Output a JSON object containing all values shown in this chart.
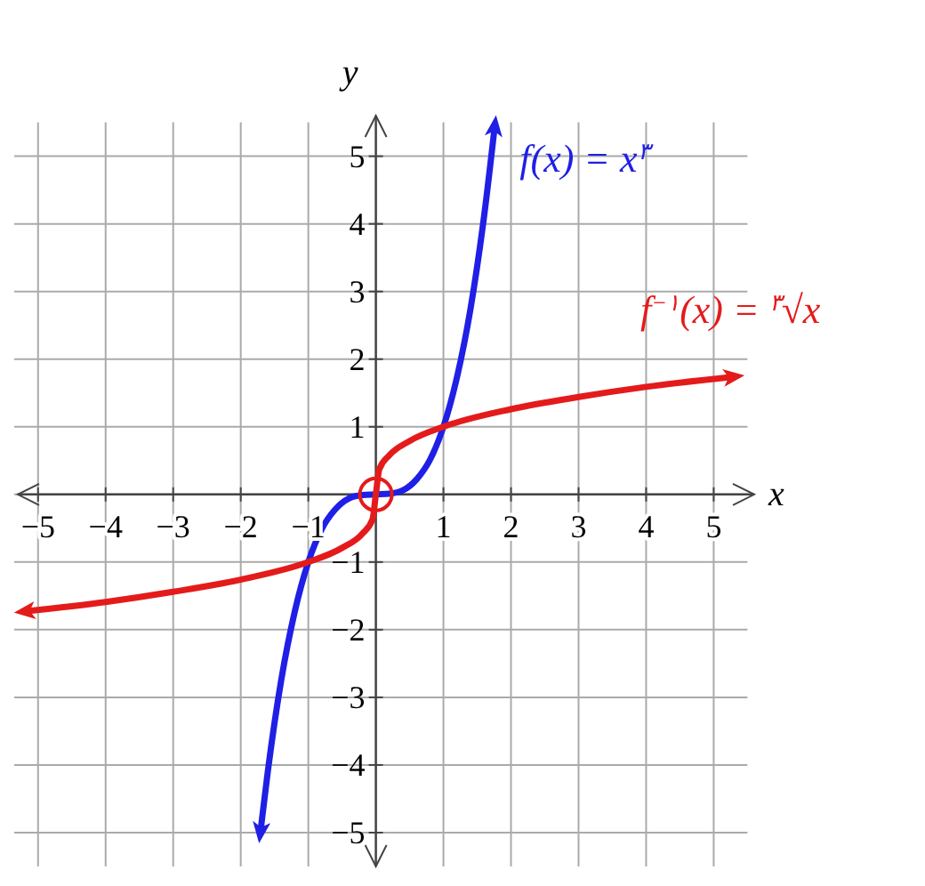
{
  "chart_data": {
    "type": "line",
    "xlabel": "x",
    "ylabel": "y",
    "xlim": [
      -5.3,
      5.6
    ],
    "ylim": [
      -5.5,
      5.6
    ],
    "xticks": [
      -5,
      -4,
      -3,
      -2,
      -1,
      {
        "value": 0,
        "label": null
      },
      1,
      2,
      3,
      4,
      5
    ],
    "yticks": [
      -5,
      -4,
      -3,
      -2,
      -1,
      {
        "value": 0,
        "label": null
      },
      1,
      2,
      3,
      4,
      5
    ],
    "grid": true,
    "line_style": "solid",
    "series": [
      {
        "name": "f(x) = x$^{۳}$",
        "color": "#1f1fe6",
        "x": [
          -1.71,
          -1.6,
          -1.4,
          -1.2,
          -1,
          -0.8,
          -0.6,
          -0.4,
          -0.2,
          0,
          0.2,
          0.4,
          0.6,
          0.8,
          1,
          1.2,
          1.4,
          1.6,
          1.76
        ],
        "values": [
          -5,
          -4.1,
          -2.74,
          -1.73,
          -1,
          -0.51,
          -0.22,
          -0.06,
          -0.01,
          0,
          0.01,
          0.06,
          0.22,
          0.51,
          1,
          1.73,
          2.74,
          4.1,
          5.45
        ]
      },
      {
        "name": "f$^{−۱}$(x) = $^{۳}$√x",
        "color": "#e41b1b",
        "x": [
          -5.2,
          -4,
          -3,
          -2,
          -1,
          -0.5,
          -0.2,
          -0.05,
          0,
          0.05,
          0.2,
          0.5,
          1,
          2,
          3,
          4,
          5.3
        ],
        "values": [
          -1.73,
          -1.59,
          -1.44,
          -1.26,
          -1,
          -0.79,
          -0.58,
          -0.37,
          0,
          0.37,
          0.58,
          0.79,
          1,
          1.26,
          1.44,
          1.59,
          1.74
        ]
      }
    ]
  }
}
